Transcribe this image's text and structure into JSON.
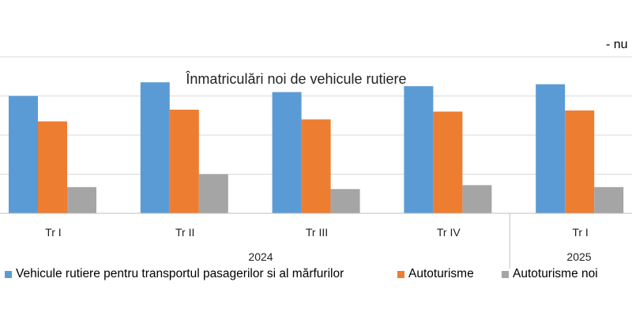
{
  "unit_note": "- nu",
  "chart_data": {
    "type": "bar",
    "title": "Înmatriculări noi de vehicule rutiere",
    "categories": [
      "Tr I",
      "Tr II",
      "Tr III",
      "Tr IV",
      "Tr I"
    ],
    "groups": [
      {
        "label": "2024",
        "span": [
          0,
          3
        ]
      },
      {
        "label": "2025",
        "span": [
          4,
          4
        ]
      }
    ],
    "series": [
      {
        "name": "Vehicule rutiere pentru transportul pasagerilor si al mărfurilor",
        "color": "#5b9bd5",
        "values": [
          30,
          33.5,
          31,
          32.5,
          33
        ]
      },
      {
        "name": "Autoturisme",
        "color": "#ed7d31",
        "values": [
          23.5,
          26.5,
          24,
          26,
          26.3
        ]
      },
      {
        "name": "Autoturisme noi",
        "color": "#a5a5a5",
        "values": [
          6.7,
          10,
          6.2,
          7.2,
          6.7
        ]
      }
    ],
    "ylim": [
      0,
      40
    ],
    "grid": true,
    "legend_position": "bottom"
  }
}
